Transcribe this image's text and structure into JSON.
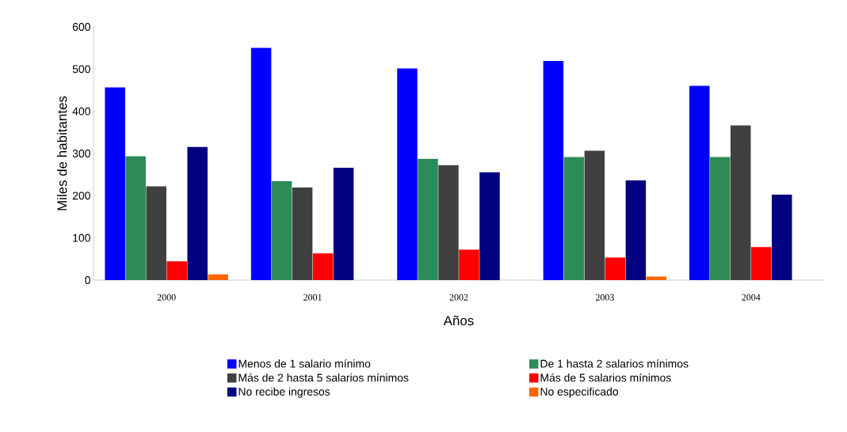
{
  "chart_data": {
    "type": "bar",
    "xlabel": "Años",
    "ylabel": "Miles de habitantes",
    "categories": [
      "2000",
      "2001",
      "2002",
      "2003",
      "2004"
    ],
    "series": [
      {
        "name": "Menos de 1 salario mínimo",
        "color": "#0000ff",
        "values": [
          455,
          549,
          500,
          518,
          459
        ]
      },
      {
        "name": "De 1 hasta 2 salarios mínimos",
        "color": "#2e8b57",
        "values": [
          292,
          233,
          286,
          290,
          290
        ]
      },
      {
        "name": "Más de 2 hasta 5 salarios mínimos",
        "color": "#404040",
        "values": [
          221,
          218,
          271,
          305,
          365
        ]
      },
      {
        "name": "Más de 5 salarios mínimos",
        "color": "#ff0000",
        "values": [
          43,
          62,
          71,
          52,
          77
        ]
      },
      {
        "name": "No recibe ingresos",
        "color": "#000080",
        "values": [
          314,
          265,
          254,
          235,
          201
        ]
      },
      {
        "name": "No especificado",
        "color": "#ff6600",
        "values": [
          12,
          null,
          null,
          7,
          null
        ]
      }
    ],
    "ylim": [
      0,
      600
    ],
    "yticks": [
      0,
      100,
      200,
      300,
      400,
      500,
      600
    ],
    "grid": false,
    "legend": "bottom"
  }
}
